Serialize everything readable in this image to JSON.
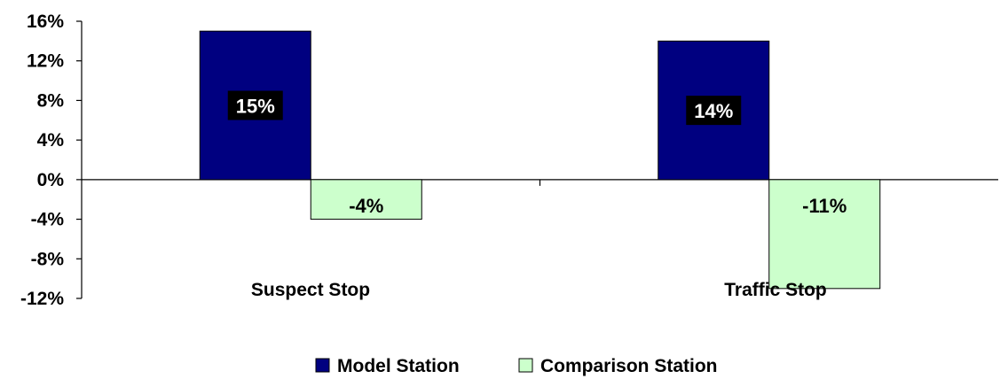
{
  "chart_data": {
    "type": "bar",
    "categories": [
      "Suspect Stop",
      "Traffic Stop"
    ],
    "series": [
      {
        "name": "Model Station",
        "values": [
          15,
          14
        ],
        "labels": [
          "15%",
          "14%"
        ],
        "color": "#000080"
      },
      {
        "name": "Comparison Station",
        "values": [
          -4,
          -11
        ],
        "labels": [
          "-4%",
          "-11%"
        ],
        "color": "#ccffcc"
      }
    ],
    "yticks": [
      16,
      12,
      8,
      4,
      0,
      -4,
      -8,
      -12
    ],
    "ytick_labels": [
      "16%",
      "12%",
      "8%",
      "4%",
      "0%",
      "-4%",
      "-8%",
      "-12%"
    ],
    "ylim": [
      -12,
      16
    ],
    "title": "",
    "xlabel": "",
    "ylabel": "",
    "grid": false,
    "legend_position": "bottom"
  }
}
